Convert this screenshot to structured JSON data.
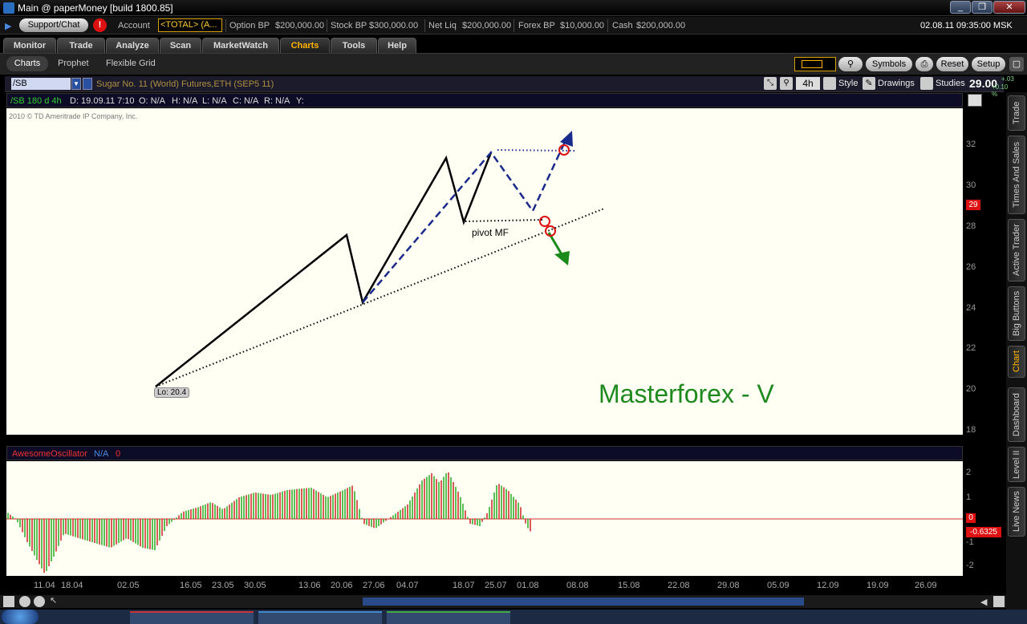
{
  "window": {
    "title": "Main @ paperMoney [build 1800.85]"
  },
  "account_bar": {
    "support": "Support/Chat",
    "alert": "!",
    "account_label": "Account",
    "account_value": "<TOTAL> (A...",
    "option_bp_label": "Option BP",
    "option_bp": "$200,000.00",
    "stock_bp_label": "Stock BP",
    "stock_bp": "$300,000.00",
    "net_liq_label": "Net Liq",
    "net_liq": "$200,000.00",
    "forex_bp_label": "Forex BP",
    "forex_bp": "$10,000.00",
    "cash_label": "Cash",
    "cash": "$200,000.00",
    "datetime": "02.08.11 09:35:00 MSK"
  },
  "nav": {
    "tabs": [
      "Monitor",
      "Trade",
      "Analyze",
      "Scan",
      "MarketWatch",
      "Charts",
      "Tools",
      "Help"
    ],
    "active": "Charts"
  },
  "subnav": {
    "tabs": [
      "Charts",
      "Prophet",
      "Flexible Grid"
    ],
    "symbols": "Symbols",
    "reset": "Reset",
    "setup": "Setup"
  },
  "chart_header": {
    "symbol": "/SB",
    "description": "Sugar No. 11 (World) Futures,ETH (SEP5 11)",
    "timeframe": "4h",
    "style": "Style",
    "drawings": "Drawings",
    "studies": "Studies",
    "price": "29.00",
    "change": "+.03",
    "change_pct": "+0.10 %"
  },
  "info_bar": {
    "sym": "/SB 180 d 4h",
    "d": "D: 19.09.11 7:10",
    "o": "O: N/A",
    "h": "H: N/A",
    "l": "L: N/A",
    "c": "C: N/A",
    "r": "R: N/A",
    "y": "Y:"
  },
  "copyright": "2010 © TD Ameritrade IP Company, Inc.",
  "annotations": {
    "lo": "Lo: 20.4",
    "pivot": "pivot MF",
    "watermark": "Masterforex - V"
  },
  "price_axis": {
    "ticks": [
      "32",
      "30",
      "28",
      "26",
      "24",
      "22",
      "20",
      "18"
    ],
    "current": "29"
  },
  "osc": {
    "name": "AwesomeOscillator",
    "na": "N/A",
    "zero": "0",
    "ticks": [
      "2",
      "1",
      "-1",
      "-2"
    ],
    "zero_label": "0",
    "value": "-0.6325"
  },
  "x_axis": {
    "ticks": [
      "11.04",
      "18.04",
      "02.05",
      "16.05",
      "23.05",
      "30.05",
      "13.06",
      "20.06",
      "27.06",
      "04.07",
      "18.07",
      "25.07",
      "01.08",
      "08.08",
      "15.08",
      "22.08",
      "29.08",
      "05.09",
      "12.09",
      "19.09",
      "26.09"
    ]
  },
  "side_tabs": [
    "Trade",
    "Times And Sales",
    "Active Trader",
    "Big Buttons",
    "Chart",
    "Dashboard",
    "Level II",
    "Live News"
  ],
  "colors": {
    "up": "#22aa22",
    "down": "#cc2222",
    "accent": "#ffb400",
    "watermark": "#1e8a1e",
    "projection": "#1a2a8a"
  },
  "chart_data": {
    "type": "candlestick",
    "pattern_lines": [
      [
        0,
        20.4
      ],
      [
        41,
        27.6
      ],
      [
        43,
        24.2
      ],
      [
        54,
        31.5
      ],
      [
        57,
        28.3
      ],
      [
        60,
        31.9
      ],
      [
        64,
        28.9
      ],
      [
        68,
        31.9
      ]
    ],
    "trendline": [
      [
        0,
        20.4
      ],
      [
        75,
        28.8
      ]
    ]
  }
}
